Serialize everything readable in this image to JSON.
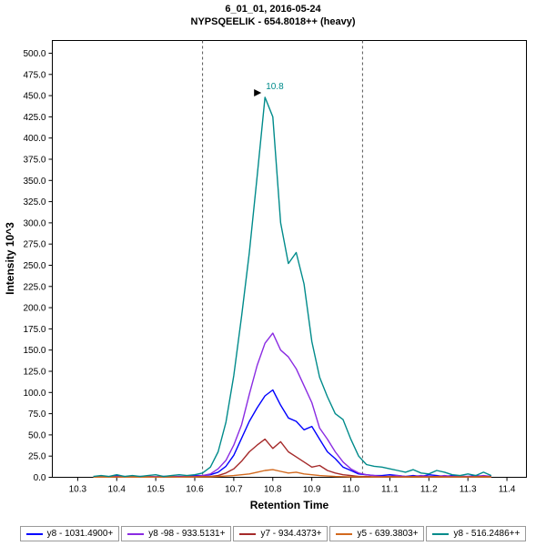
{
  "header": {
    "title": "6_01_01, 2016-05-24",
    "subtitle": "NYPSQEELIK - 654.8018++ (heavy)"
  },
  "chart_data": {
    "type": "line",
    "title": "6_01_01, 2016-05-24",
    "subtitle": "NYPSQEELIK - 654.8018++ (heavy)",
    "xlabel": "Retention Time",
    "ylabel": "Intensity 10^3",
    "xlim": [
      10.235,
      11.45
    ],
    "ylim": [
      0,
      515
    ],
    "xticks": [
      10.3,
      10.4,
      10.5,
      10.6,
      10.7,
      10.8,
      10.9,
      11.0,
      11.1,
      11.2,
      11.3,
      11.4
    ],
    "yticks": [
      0,
      25,
      50,
      75,
      100,
      125,
      150,
      175,
      200,
      225,
      250,
      275,
      300,
      325,
      350,
      375,
      400,
      425,
      450,
      475,
      500
    ],
    "grid": false,
    "legend_position": "bottom",
    "peak_boundaries": [
      10.62,
      11.03
    ],
    "annotation": {
      "text": "10.8",
      "x": 10.78,
      "y": 448,
      "color": "#008B8B"
    },
    "x": [
      10.34,
      10.36,
      10.38,
      10.4,
      10.42,
      10.44,
      10.46,
      10.48,
      10.5,
      10.52,
      10.54,
      10.56,
      10.58,
      10.6,
      10.62,
      10.64,
      10.66,
      10.68,
      10.7,
      10.72,
      10.74,
      10.76,
      10.78,
      10.8,
      10.82,
      10.84,
      10.86,
      10.88,
      10.9,
      10.92,
      10.94,
      10.96,
      10.98,
      11.0,
      11.02,
      11.04,
      11.06,
      11.08,
      11.1,
      11.12,
      11.14,
      11.16,
      11.18,
      11.2,
      11.22,
      11.24,
      11.26,
      11.28,
      11.3,
      11.32,
      11.34,
      11.36
    ],
    "series": [
      {
        "name": "y8 - 1031.4900+",
        "color": "#0000FF",
        "values": [
          0.5,
          1,
          0.5,
          2,
          1,
          0.5,
          1,
          1,
          0.5,
          1,
          1,
          1,
          1,
          2,
          2,
          3,
          6,
          13,
          26,
          46,
          66,
          82,
          96,
          103,
          85,
          70,
          66,
          56,
          60,
          45,
          30,
          22,
          12,
          8,
          4,
          3,
          2,
          2,
          3,
          2,
          1,
          2,
          1,
          3,
          2,
          1,
          2,
          1,
          1,
          2,
          1,
          1
        ]
      },
      {
        "name": "y8 -98 - 933.5131+",
        "color": "#8A2BE2",
        "values": [
          0.5,
          1,
          0.5,
          1,
          0.5,
          1,
          0.5,
          1,
          0.5,
          1,
          1,
          0.5,
          1,
          1,
          2,
          4,
          10,
          20,
          38,
          62,
          98,
          132,
          158,
          170,
          150,
          142,
          128,
          108,
          88,
          58,
          45,
          30,
          18,
          10,
          5,
          3,
          2,
          1,
          1,
          2,
          1,
          1,
          2,
          1,
          1,
          2,
          1,
          1,
          1,
          1,
          2,
          1
        ]
      },
      {
        "name": "y7 - 934.4373+",
        "color": "#A52A2A",
        "values": [
          0.3,
          0.5,
          0.3,
          0.5,
          0.3,
          0.5,
          0.3,
          0.5,
          0.3,
          0.5,
          0.5,
          0.3,
          0.5,
          0.5,
          1,
          1,
          2,
          5,
          10,
          19,
          30,
          38,
          45,
          34,
          42,
          30,
          24,
          18,
          12,
          14,
          8,
          5,
          3,
          2,
          1,
          1,
          0.5,
          0.5,
          1,
          0.5,
          0.5,
          1,
          0.5,
          0.5,
          1,
          0.5,
          0.5,
          0.5,
          0.5,
          0.5,
          1,
          0.5
        ]
      },
      {
        "name": "y5 - 639.3803+",
        "color": "#D2691E",
        "values": [
          0.2,
          0.3,
          0.2,
          0.3,
          0.2,
          0.3,
          0.2,
          0.3,
          0.2,
          0.3,
          0.3,
          0.2,
          0.3,
          0.3,
          0.5,
          0.5,
          1,
          1.5,
          2,
          3,
          4,
          6,
          8,
          9,
          7,
          5,
          6,
          4,
          3,
          2,
          1.5,
          1,
          0.8,
          0.5,
          0.5,
          0.3,
          0.3,
          0.3,
          0.5,
          0.3,
          0.3,
          0.5,
          0.3,
          0.3,
          0.5,
          0.3,
          0.3,
          0.3,
          0.3,
          0.3,
          0.5,
          0.3
        ]
      },
      {
        "name": "y8 - 516.2486++",
        "color": "#008B8B",
        "values": [
          1,
          2,
          1,
          3,
          1,
          2,
          1,
          2,
          3,
          1,
          2,
          3,
          2,
          3,
          5,
          12,
          30,
          65,
          120,
          190,
          265,
          355,
          448,
          425,
          300,
          252,
          265,
          228,
          160,
          118,
          95,
          75,
          68,
          45,
          25,
          15,
          13,
          12,
          10,
          8,
          6,
          9,
          5,
          4,
          8,
          6,
          3,
          2,
          4,
          2,
          6,
          2
        ]
      }
    ]
  }
}
